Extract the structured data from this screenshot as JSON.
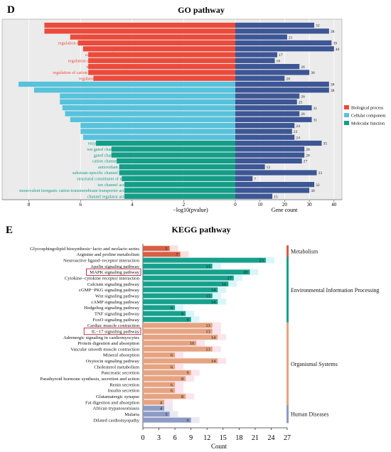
{
  "chart_data": [
    {
      "type": "bar",
      "panel_label": "D",
      "title": "GO pathway",
      "xlabel_left": "−log10(pvalue)",
      "xlabel_right": "Gene count",
      "xticks_left": [
        "8",
        "6",
        "4",
        "2",
        "0"
      ],
      "xticks_right": [
        "10",
        "20",
        "30",
        "40"
      ],
      "xlim_left": [
        8.9,
        0
      ],
      "xlim_right": [
        0,
        41.5
      ],
      "colors": {
        "Biological process": "#ec4a3a",
        "Cellular component": "#56c2dc",
        "Molecular function": "#139e88",
        "gene_count": "#3d5695"
      },
      "legend": [
        "Biological process",
        "Cellular component",
        "Molecular function"
      ],
      "legend_position": "right",
      "categories": [
        "muscle contraction",
        "muscle system process",
        "striated muscle contraction",
        "regulation of ion transmembrane transport",
        "signal release",
        "cardiac muscle contraction",
        "regulation of neurotransmitter levels",
        "neurotransmitter transport",
        "regulation of cation transmembrane transport",
        "regulation of heart contraction",
        "synaptic membrane",
        "presynapse",
        "neuron projection terminus",
        "contractile fiber part",
        "transmembrane transporter complex",
        "contractile fiber",
        "transporter complex",
        "myofibril",
        "axon terminus",
        "cation channel complex",
        "enzyme inhibitor activity",
        "ion gated channel activity",
        "gated channel activity",
        "cation channel activity",
        "antioxidant activity",
        "substrate-specific channel activity",
        "structural constituent of muscle",
        "ion channel activity",
        "monovalent inorganic cation transmembrane transporter activity",
        "channel regulator activity"
      ],
      "groups": [
        "Biological process",
        "Biological process",
        "Biological process",
        "Biological process",
        "Biological process",
        "Biological process",
        "Biological process",
        "Biological process",
        "Biological process",
        "Biological process",
        "Cellular component",
        "Cellular component",
        "Cellular component",
        "Cellular component",
        "Cellular component",
        "Cellular component",
        "Cellular component",
        "Cellular component",
        "Cellular component",
        "Cellular component",
        "Molecular function",
        "Molecular function",
        "Molecular function",
        "Molecular function",
        "Molecular function",
        "Molecular function",
        "Molecular function",
        "Molecular function",
        "Molecular function",
        "Molecular function"
      ],
      "series": [
        {
          "name": "−log10(pvalue)",
          "values": [
            7.4,
            7.4,
            6.4,
            6.1,
            5.9,
            5.7,
            5.7,
            5.7,
            5.7,
            5.5,
            8.4,
            7.8,
            6.8,
            6.8,
            6.7,
            6.6,
            6.4,
            6.0,
            6.0,
            5.9,
            5.4,
            4.8,
            4.8,
            4.6,
            4.5,
            4.5,
            4.4,
            4.3,
            4.3,
            4.3
          ]
        },
        {
          "name": "Gene count",
          "values": [
            32,
            38,
            21,
            39,
            40,
            17,
            16,
            26,
            30,
            20,
            38,
            38,
            26,
            25,
            31,
            26,
            31,
            24,
            23,
            24,
            35,
            28,
            28,
            27,
            12,
            33,
            7,
            32,
            30,
            15
          ]
        }
      ]
    },
    {
      "type": "bar",
      "panel_label": "E",
      "title": "KEGG pathway",
      "xlabel": "Count",
      "xticks": [
        "0",
        "3",
        "6",
        "9",
        "12",
        "15",
        "18",
        "21",
        "24",
        "27"
      ],
      "xlim": [
        0,
        27
      ],
      "colors": {
        "Metabolism": "#d65f46",
        "Environmental Information Processing": "#17a08c",
        "Organismal Systems": "#e5a47f",
        "Human Diseases": "#8e9bc4"
      },
      "highlighted": [
        "MAPK signaling pathway",
        "IL−17 signaling pathway"
      ],
      "categories": [
        "Glycosphingolipid biosynthesis−lacto and neolacto series",
        "Arginine and proline metabolism",
        "Neuroactive ligand−receptor interaction",
        "Apelin signaling pathway",
        "MAPK signaling pathway",
        "Cytokine−cytokine receptor interaction",
        "Calcium signaling pathway",
        "cGMP−PKG signaling pathway",
        "Wnt signaling pathway",
        "cAMP signaling pathway",
        "Hedgehog signaling pathway",
        "TNF signaling pathway",
        "FoxO signaling pathway",
        "Cardiac muscle contraction",
        "IL−17 signaling pathway",
        "Adrenergic signaling in cardiomyocytes",
        "Protein digestion and absorption",
        "Vascular smooth muscle contraction",
        "Mineral absorption",
        "Oxytocin signaling pathway",
        "Cholesterol metabolism",
        "Pancreatic secretion",
        "Parathyroid hormone synthesis, secretion and action",
        "Renin secretion",
        "Insulin secretion",
        "Glutamatergic synapse",
        "Fat digestion and absorption",
        "African trypanosomiasis",
        "Malaria",
        "Dilated cardiomyopathy"
      ],
      "groups": [
        "Metabolism",
        "Metabolism",
        "Environmental Information Processing",
        "Environmental Information Processing",
        "Environmental Information Processing",
        "Environmental Information Processing",
        "Environmental Information Processing",
        "Environmental Information Processing",
        "Environmental Information Processing",
        "Environmental Information Processing",
        "Environmental Information Processing",
        "Environmental Information Processing",
        "Environmental Information Processing",
        "Organismal Systems",
        "Organismal Systems",
        "Organismal Systems",
        "Organismal Systems",
        "Organismal Systems",
        "Organismal Systems",
        "Organismal Systems",
        "Organismal Systems",
        "Organismal Systems",
        "Organismal Systems",
        "Organismal Systems",
        "Organismal Systems",
        "Organismal Systems",
        "Organismal Systems",
        "Human Diseases",
        "Human Diseases",
        "Human Diseases"
      ],
      "values": [
        5,
        7,
        23,
        13,
        20,
        17,
        16,
        14,
        13,
        14,
        6,
        8,
        9,
        13,
        13,
        14,
        10,
        13,
        6,
        14,
        6,
        9,
        8,
        6,
        6,
        8,
        4,
        4,
        5,
        9
      ],
      "category_labels": [
        {
          "label": "Metabolism",
          "rows": [
            0,
            1
          ]
        },
        {
          "label": "Environmental Information Processing",
          "rows": [
            2,
            12
          ]
        },
        {
          "label": "Organismal Systems",
          "rows": [
            13,
            26
          ]
        },
        {
          "label": "Human Diseases",
          "rows": [
            27,
            29
          ]
        }
      ]
    }
  ]
}
